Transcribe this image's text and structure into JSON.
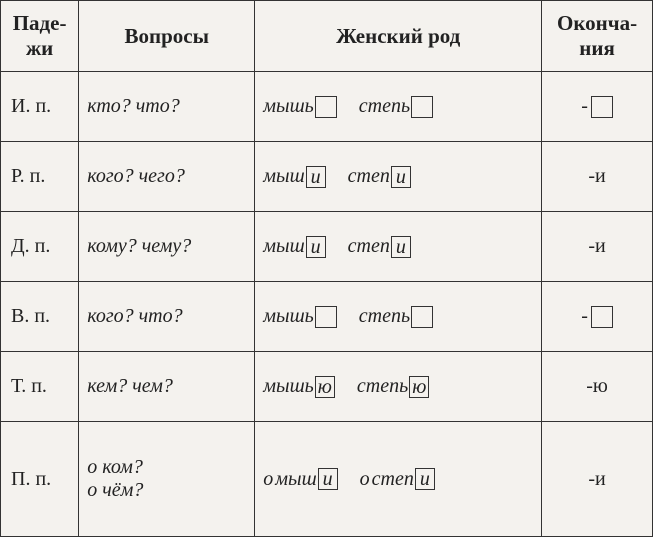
{
  "headers": {
    "case": "Паде-\nжи",
    "questions": "Вопросы",
    "feminine": "Женский  род",
    "endings": "Оконча-\nния"
  },
  "rows": [
    {
      "case": "И.  п.",
      "question": "кто? что?",
      "word1_stem": "мышь",
      "word1_suffix": "",
      "word1_empty": true,
      "word2_stem": "степь",
      "word2_suffix": "",
      "word2_empty": true,
      "prefix1": "",
      "prefix2": "",
      "ending_text": "",
      "ending_box": true,
      "ending_box_val": ""
    },
    {
      "case": "Р.  п.",
      "question": "кого? чего?",
      "word1_stem": "мыш",
      "word1_suffix": "и",
      "word1_empty": false,
      "word2_stem": "степ",
      "word2_suffix": "и",
      "word2_empty": false,
      "prefix1": "",
      "prefix2": "",
      "ending_text": "-и",
      "ending_box": false,
      "ending_box_val": ""
    },
    {
      "case": "Д.  п.",
      "question": "кому? чему?",
      "word1_stem": "мыш",
      "word1_suffix": "и",
      "word1_empty": false,
      "word2_stem": "степ",
      "word2_suffix": "и",
      "word2_empty": false,
      "prefix1": "",
      "prefix2": "",
      "ending_text": "-и",
      "ending_box": false,
      "ending_box_val": ""
    },
    {
      "case": "В.  п.",
      "question": "кого? что?",
      "word1_stem": "мышь",
      "word1_suffix": "",
      "word1_empty": true,
      "word2_stem": "степь",
      "word2_suffix": "",
      "word2_empty": true,
      "prefix1": "",
      "prefix2": "",
      "ending_text": "",
      "ending_box": true,
      "ending_box_val": ""
    },
    {
      "case": "Т.  п.",
      "question": "кем? чем?",
      "word1_stem": "мышь",
      "word1_suffix": "ю",
      "word1_empty": false,
      "word2_stem": "степь",
      "word2_suffix": "ю",
      "word2_empty": false,
      "prefix1": "",
      "prefix2": "",
      "ending_text": "-ю",
      "ending_box": false,
      "ending_box_val": ""
    },
    {
      "case": "П.  п.",
      "question": "о ком?\nо чём?",
      "word1_stem": "мыш",
      "word1_suffix": "и",
      "word1_empty": false,
      "word2_stem": "степ",
      "word2_suffix": "и",
      "word2_empty": false,
      "prefix1": "о ",
      "prefix2": "о ",
      "ending_text": "-и",
      "ending_box": false,
      "ending_box_val": ""
    }
  ],
  "style": {
    "border_color": "#333333",
    "background": "#f4f2ee",
    "font_italic_cells": true,
    "font_size_body": 20,
    "font_size_header": 21
  }
}
